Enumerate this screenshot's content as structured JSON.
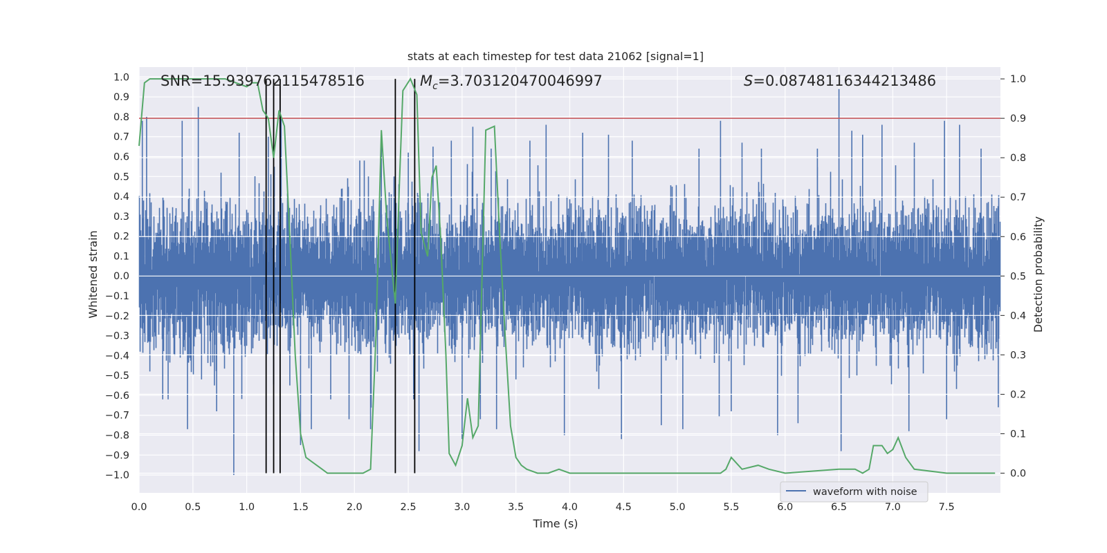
{
  "chart_data": {
    "type": "line",
    "title": "stats at each timestep for test data 21062 [signal=1]",
    "xlabel": "Time (s)",
    "ylabel": "Whitened strain",
    "ylabel_right": "Detection probability",
    "xlim": [
      0.0,
      8.0
    ],
    "ylim": [
      -1.09,
      1.05
    ],
    "ylim_right": [
      -0.05,
      1.03
    ],
    "xticks": [
      "0.0",
      "0.5",
      "1.0",
      "1.5",
      "2.0",
      "2.5",
      "3.0",
      "3.5",
      "4.0",
      "4.5",
      "5.0",
      "5.5",
      "6.0",
      "6.5",
      "7.0",
      "7.5"
    ],
    "yticks": [
      "1.0",
      "0.9",
      "0.8",
      "0.7",
      "0.6",
      "0.5",
      "0.4",
      "0.3",
      "0.2",
      "0.1",
      "0.0",
      "-0.1",
      "-0.2",
      "-0.3",
      "-0.4",
      "-0.5",
      "-0.6",
      "-0.7",
      "-0.8",
      "-0.9",
      "-1.0"
    ],
    "yticks_right": [
      "1.0",
      "0.9",
      "0.8",
      "0.7",
      "0.6",
      "0.5",
      "0.4",
      "0.3",
      "0.2",
      "0.1",
      "0.0"
    ],
    "annotations": {
      "snr": "SNR=15.939762115478516",
      "mc_symbol": "M",
      "mc_sub": "c",
      "mc_value": "=3.703120470046997",
      "s_symbol": "S",
      "s_value": "=0.08748116344213486"
    },
    "legend": {
      "label": "waveform with noise",
      "placement": "lower-right"
    },
    "threshold": {
      "value": 0.9,
      "axis": "right",
      "color": "#c44e52"
    },
    "vertical_markers": [
      1.18,
      1.25,
      1.31,
      2.38,
      2.56
    ],
    "series": [
      {
        "name": "waveform with noise",
        "axis": "left",
        "color": "#4c72b0",
        "sample_rate": 2048,
        "envelope_peaks": [
          [
            0.03,
            0.78
          ],
          [
            0.07,
            0.8
          ],
          [
            0.1,
            -0.48
          ],
          [
            0.22,
            -0.62
          ],
          [
            0.27,
            -0.62
          ],
          [
            0.4,
            0.78
          ],
          [
            0.45,
            -0.77
          ],
          [
            0.55,
            0.85
          ],
          [
            0.58,
            -0.52
          ],
          [
            0.7,
            -0.55
          ],
          [
            0.72,
            -0.68
          ],
          [
            0.88,
            -1.0
          ],
          [
            0.93,
            0.72
          ],
          [
            1.2,
            0.7
          ],
          [
            1.32,
            0.8
          ],
          [
            1.4,
            -0.55
          ],
          [
            1.5,
            -0.85
          ],
          [
            1.6,
            -0.77
          ],
          [
            1.78,
            -0.62
          ],
          [
            1.95,
            -0.72
          ],
          [
            2.05,
            0.58
          ],
          [
            2.15,
            -0.77
          ],
          [
            2.25,
            0.68
          ],
          [
            2.5,
            0.62
          ],
          [
            2.55,
            -0.62
          ],
          [
            2.6,
            -0.88
          ],
          [
            2.73,
            0.65
          ],
          [
            2.9,
            0.68
          ],
          [
            3.0,
            -0.82
          ],
          [
            3.1,
            0.75
          ],
          [
            3.17,
            -0.72
          ],
          [
            3.27,
            0.64
          ],
          [
            3.32,
            -0.77
          ],
          [
            3.5,
            -0.52
          ],
          [
            3.63,
            0.68
          ],
          [
            3.78,
            0.76
          ],
          [
            3.95,
            -0.8
          ],
          [
            4.12,
            0.72
          ],
          [
            4.36,
            0.71
          ],
          [
            4.48,
            -0.82
          ],
          [
            4.58,
            0.68
          ],
          [
            4.85,
            -0.75
          ],
          [
            5.05,
            -0.77
          ],
          [
            5.2,
            0.64
          ],
          [
            5.4,
            0.78
          ],
          [
            5.5,
            -0.68
          ],
          [
            5.6,
            0.67
          ],
          [
            5.78,
            0.64
          ],
          [
            5.93,
            -0.8
          ],
          [
            6.12,
            -0.74
          ],
          [
            6.3,
            0.64
          ],
          [
            6.5,
            0.94
          ],
          [
            6.52,
            -0.88
          ],
          [
            6.62,
            0.73
          ],
          [
            6.72,
            0.71
          ],
          [
            6.9,
            0.76
          ],
          [
            7.15,
            -0.78
          ],
          [
            7.2,
            0.67
          ],
          [
            7.48,
            0.78
          ],
          [
            7.5,
            -0.72
          ],
          [
            7.62,
            0.76
          ],
          [
            7.82,
            0.64
          ],
          [
            7.98,
            -0.66
          ]
        ],
        "typical_amplitude": 0.35
      },
      {
        "name": "detection probability",
        "axis": "right",
        "color": "#55a868",
        "x": [
          0.0,
          0.05,
          0.1,
          0.2,
          0.4,
          0.6,
          0.8,
          0.9,
          1.0,
          1.05,
          1.1,
          1.15,
          1.2,
          1.25,
          1.3,
          1.35,
          1.4,
          1.45,
          1.5,
          1.55,
          1.6,
          1.7,
          1.75,
          1.8,
          2.0,
          2.08,
          2.15,
          2.2,
          2.25,
          2.3,
          2.38,
          2.42,
          2.45,
          2.52,
          2.58,
          2.62,
          2.68,
          2.72,
          2.76,
          2.8,
          2.85,
          2.88,
          2.94,
          3.0,
          3.05,
          3.1,
          3.15,
          3.22,
          3.3,
          3.35,
          3.4,
          3.45,
          3.5,
          3.55,
          3.6,
          3.7,
          3.8,
          3.9,
          4.0,
          4.5,
          5.0,
          5.4,
          5.45,
          5.5,
          5.6,
          5.75,
          5.85,
          6.0,
          6.5,
          6.65,
          6.72,
          6.78,
          6.82,
          6.9,
          6.95,
          7.0,
          7.05,
          7.12,
          7.2,
          7.5,
          7.95
        ],
        "y": [
          0.83,
          0.99,
          1.0,
          1.0,
          1.0,
          1.0,
          1.0,
          0.99,
          0.98,
          0.99,
          0.99,
          0.92,
          0.9,
          0.8,
          0.92,
          0.88,
          0.6,
          0.3,
          0.1,
          0.04,
          0.03,
          0.01,
          0.0,
          0.0,
          0.0,
          0.0,
          0.01,
          0.35,
          0.87,
          0.65,
          0.43,
          0.75,
          0.97,
          1.0,
          0.96,
          0.61,
          0.55,
          0.75,
          0.78,
          0.6,
          0.3,
          0.05,
          0.02,
          0.07,
          0.19,
          0.09,
          0.12,
          0.87,
          0.88,
          0.6,
          0.35,
          0.12,
          0.04,
          0.02,
          0.01,
          0.0,
          0.0,
          0.01,
          0.0,
          0.0,
          0.0,
          0.0,
          0.01,
          0.04,
          0.01,
          0.02,
          0.01,
          0.0,
          0.01,
          0.01,
          0.0,
          0.01,
          0.07,
          0.07,
          0.05,
          0.06,
          0.09,
          0.04,
          0.01,
          0.0,
          0.0
        ]
      }
    ]
  }
}
